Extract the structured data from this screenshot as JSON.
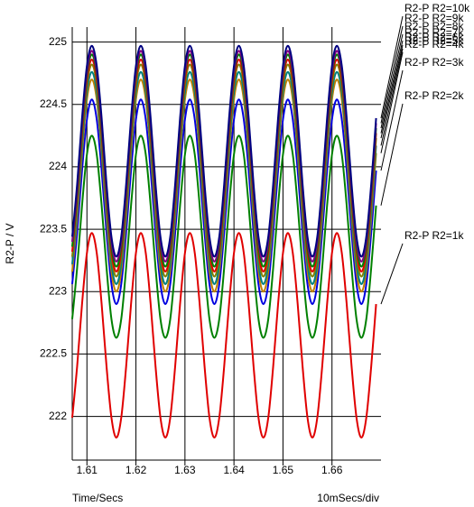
{
  "chart_data": {
    "type": "line",
    "ylabel": "R2-P / V",
    "xlabel": "Time/Secs",
    "xscale_label": "10mSecs/div",
    "xlim": [
      1.607,
      1.67
    ],
    "ylim": [
      221.65,
      225.12
    ],
    "xticks": [
      1.61,
      1.62,
      1.63,
      1.64,
      1.65,
      1.66
    ],
    "yticks": [
      222,
      222.5,
      223,
      223.5,
      224,
      224.5,
      225
    ],
    "grid": true,
    "x": [
      1.607,
      1.608,
      1.609,
      1.61,
      1.611,
      1.612,
      1.613,
      1.614,
      1.615,
      1.616,
      1.617,
      1.618,
      1.619,
      1.62,
      1.621,
      1.622,
      1.623,
      1.624,
      1.625,
      1.626,
      1.627,
      1.628,
      1.629,
      1.63,
      1.631,
      1.632,
      1.633,
      1.634,
      1.635,
      1.636,
      1.637,
      1.638,
      1.639,
      1.64,
      1.641,
      1.642,
      1.643,
      1.644,
      1.645,
      1.646,
      1.647,
      1.648,
      1.649,
      1.65,
      1.651,
      1.652,
      1.653,
      1.654,
      1.655,
      1.656,
      1.657,
      1.658,
      1.659,
      1.66,
      1.661,
      1.662,
      1.663,
      1.664,
      1.665,
      1.666,
      1.667,
      1.668,
      1.669
    ],
    "series": [
      {
        "name": "R2-P R2=1k",
        "color": "#e00000",
        "values": [
          221.99,
          222.4,
          222.9,
          223.31,
          223.47,
          223.31,
          222.9,
          222.4,
          221.99,
          221.83,
          221.99,
          222.4,
          222.9,
          223.31,
          223.47,
          223.31,
          222.9,
          222.4,
          221.99,
          221.83,
          221.99,
          222.4,
          222.9,
          223.31,
          223.47,
          223.31,
          222.9,
          222.4,
          221.99,
          221.83,
          221.99,
          222.4,
          222.9,
          223.31,
          223.47,
          223.31,
          222.9,
          222.4,
          221.99,
          221.83,
          221.99,
          222.4,
          222.9,
          223.31,
          223.47,
          223.31,
          222.9,
          222.4,
          221.99,
          221.83,
          221.99,
          222.4,
          222.9,
          223.31,
          223.47,
          223.31,
          222.9,
          222.4,
          221.99,
          221.83,
          221.99,
          222.4,
          222.9
        ]
      },
      {
        "name": "R2-P R2=2k",
        "color": "#008000",
        "values": [
          222.78,
          223.19,
          223.69,
          224.1,
          224.25,
          224.1,
          223.69,
          223.19,
          222.78,
          222.63,
          222.78,
          223.19,
          223.69,
          224.1,
          224.25,
          224.1,
          223.69,
          223.19,
          222.78,
          222.63,
          222.78,
          223.19,
          223.69,
          224.1,
          224.25,
          224.1,
          223.69,
          223.19,
          222.78,
          222.63,
          222.78,
          223.19,
          223.69,
          224.1,
          224.25,
          224.1,
          223.69,
          223.19,
          222.78,
          222.63,
          222.78,
          223.19,
          223.69,
          224.1,
          224.25,
          224.1,
          223.69,
          223.19,
          222.78,
          222.63,
          222.78,
          223.19,
          223.69,
          224.1,
          224.25,
          224.1,
          223.69,
          223.19,
          222.78,
          222.63,
          222.78,
          223.19,
          223.69
        ]
      },
      {
        "name": "R2-P R2=3k",
        "color": "#0000e0",
        "values": [
          223.06,
          223.47,
          223.97,
          224.38,
          224.54,
          224.38,
          223.97,
          223.47,
          223.06,
          222.9,
          223.06,
          223.47,
          223.97,
          224.38,
          224.54,
          224.38,
          223.97,
          223.47,
          223.06,
          222.9,
          223.06,
          223.47,
          223.97,
          224.38,
          224.54,
          224.38,
          223.97,
          223.47,
          223.06,
          222.9,
          223.06,
          223.47,
          223.97,
          224.38,
          224.54,
          224.38,
          223.97,
          223.47,
          223.06,
          222.9,
          223.06,
          223.47,
          223.97,
          224.38,
          224.54,
          224.38,
          223.97,
          223.47,
          223.06,
          222.9,
          223.06,
          223.47,
          223.97,
          224.38,
          224.54,
          224.38,
          223.97,
          223.47,
          223.06,
          222.9,
          223.06,
          223.47,
          223.97
        ]
      },
      {
        "name": "R2-P R2=4k",
        "color": "#c08000",
        "values": [
          223.16,
          223.59,
          224.11,
          224.54,
          224.7,
          224.54,
          224.11,
          223.59,
          223.16,
          223.0,
          223.16,
          223.59,
          224.11,
          224.54,
          224.7,
          224.54,
          224.11,
          223.59,
          223.16,
          223.0,
          223.16,
          223.59,
          224.11,
          224.54,
          224.7,
          224.54,
          224.11,
          223.59,
          223.16,
          223.0,
          223.16,
          223.59,
          224.11,
          224.54,
          224.7,
          224.54,
          224.11,
          223.59,
          223.16,
          223.0,
          223.16,
          223.59,
          224.11,
          224.54,
          224.7,
          224.54,
          224.11,
          223.59,
          223.16,
          223.0,
          223.16,
          223.59,
          224.11,
          224.54,
          224.7,
          224.54,
          224.11,
          223.59,
          223.16,
          223.0,
          223.16,
          223.59,
          224.11
        ]
      },
      {
        "name": "R2-P R2=5k",
        "color": "#008080",
        "values": [
          223.22,
          223.65,
          224.17,
          224.6,
          224.76,
          224.6,
          224.17,
          223.65,
          223.22,
          223.06,
          223.22,
          223.65,
          224.17,
          224.6,
          224.76,
          224.6,
          224.17,
          223.65,
          223.22,
          223.06,
          223.22,
          223.65,
          224.17,
          224.6,
          224.76,
          224.6,
          224.17,
          223.65,
          223.22,
          223.06,
          223.22,
          223.65,
          224.17,
          224.6,
          224.76,
          224.6,
          224.17,
          223.65,
          223.22,
          223.06,
          223.22,
          223.65,
          224.17,
          224.6,
          224.76,
          224.6,
          224.17,
          223.65,
          223.22,
          223.06,
          223.22,
          223.65,
          224.17,
          224.6,
          224.76,
          224.6,
          224.17,
          223.65,
          223.22,
          223.06,
          223.22,
          223.65,
          224.17
        ]
      },
      {
        "name": "R2-P R2=6k",
        "color": "#808000",
        "values": [
          223.28,
          223.71,
          224.23,
          224.66,
          224.82,
          224.66,
          224.23,
          223.71,
          223.28,
          223.12,
          223.28,
          223.71,
          224.23,
          224.66,
          224.82,
          224.66,
          224.23,
          223.71,
          223.28,
          223.12,
          223.28,
          223.71,
          224.23,
          224.66,
          224.82,
          224.66,
          224.23,
          223.71,
          223.28,
          223.12,
          223.28,
          223.71,
          224.23,
          224.66,
          224.82,
          224.66,
          224.23,
          223.71,
          223.28,
          223.12,
          223.28,
          223.71,
          224.23,
          224.66,
          224.82,
          224.66,
          224.23,
          223.71,
          223.28,
          223.12,
          223.28,
          223.71,
          224.23,
          224.66,
          224.82,
          224.66,
          224.23,
          223.71,
          223.28,
          223.12,
          223.28,
          223.71,
          224.23
        ]
      },
      {
        "name": "R2-P R2=7k",
        "color": "#e00000",
        "values": [
          223.32,
          223.75,
          224.27,
          224.7,
          224.86,
          224.7,
          224.27,
          223.75,
          223.32,
          223.16,
          223.32,
          223.75,
          224.27,
          224.7,
          224.86,
          224.7,
          224.27,
          223.75,
          223.32,
          223.16,
          223.32,
          223.75,
          224.27,
          224.7,
          224.86,
          224.7,
          224.27,
          223.75,
          223.32,
          223.16,
          223.32,
          223.75,
          224.27,
          224.7,
          224.86,
          224.7,
          224.27,
          223.75,
          223.32,
          223.16,
          223.32,
          223.75,
          224.27,
          224.7,
          224.86,
          224.7,
          224.27,
          223.75,
          223.32,
          223.16,
          223.32,
          223.75,
          224.27,
          224.7,
          224.86,
          224.7,
          224.27,
          223.75,
          223.32,
          223.16,
          223.32,
          223.75,
          224.27
        ]
      },
      {
        "name": "R2-P R2=8k",
        "color": "#008000",
        "values": [
          223.36,
          223.79,
          224.31,
          224.74,
          224.9,
          224.74,
          224.31,
          223.79,
          223.36,
          223.2,
          223.36,
          223.79,
          224.31,
          224.74,
          224.9,
          224.74,
          224.31,
          223.79,
          223.36,
          223.2,
          223.36,
          223.79,
          224.31,
          224.74,
          224.9,
          224.74,
          224.31,
          223.79,
          223.36,
          223.2,
          223.36,
          223.79,
          224.31,
          224.74,
          224.9,
          224.74,
          224.31,
          223.79,
          223.36,
          223.2,
          223.36,
          223.79,
          224.31,
          224.74,
          224.9,
          224.74,
          224.31,
          223.79,
          223.36,
          223.2,
          223.36,
          223.79,
          224.31,
          224.74,
          224.9,
          224.74,
          224.31,
          223.79,
          223.36,
          223.2,
          223.36,
          223.79,
          224.31
        ]
      },
      {
        "name": "R2-P R2=9k",
        "color": "#800080",
        "values": [
          223.4,
          223.82,
          224.35,
          224.77,
          224.93,
          224.77,
          224.35,
          223.82,
          223.4,
          223.24,
          223.4,
          223.82,
          224.35,
          224.77,
          224.93,
          224.77,
          224.35,
          223.82,
          223.4,
          223.24,
          223.4,
          223.82,
          224.35,
          224.77,
          224.93,
          224.77,
          224.35,
          223.82,
          223.4,
          223.24,
          223.4,
          223.82,
          224.35,
          224.77,
          224.93,
          224.77,
          224.35,
          223.82,
          223.4,
          223.24,
          223.4,
          223.82,
          224.35,
          224.77,
          224.93,
          224.77,
          224.35,
          223.82,
          223.4,
          223.24,
          223.4,
          223.82,
          224.35,
          224.77,
          224.93,
          224.77,
          224.35,
          223.82,
          223.4,
          223.24,
          223.4,
          223.82,
          224.35
        ]
      },
      {
        "name": "R2-P R2=10k",
        "color": "#000080",
        "values": [
          223.44,
          223.86,
          224.39,
          224.81,
          224.97,
          224.81,
          224.39,
          223.86,
          223.44,
          223.28,
          223.44,
          223.86,
          224.39,
          224.81,
          224.97,
          224.81,
          224.39,
          223.86,
          223.44,
          223.28,
          223.44,
          223.86,
          224.39,
          224.81,
          224.97,
          224.81,
          224.39,
          223.86,
          223.44,
          223.28,
          223.44,
          223.86,
          224.39,
          224.81,
          224.97,
          224.81,
          224.39,
          223.86,
          223.44,
          223.28,
          223.44,
          223.86,
          224.39,
          224.81,
          224.97,
          224.81,
          224.39,
          223.86,
          223.44,
          223.28,
          223.44,
          223.86,
          224.39,
          224.81,
          224.97,
          224.81,
          224.39,
          223.86,
          223.44,
          223.28,
          223.44,
          223.86,
          224.39
        ]
      }
    ]
  }
}
